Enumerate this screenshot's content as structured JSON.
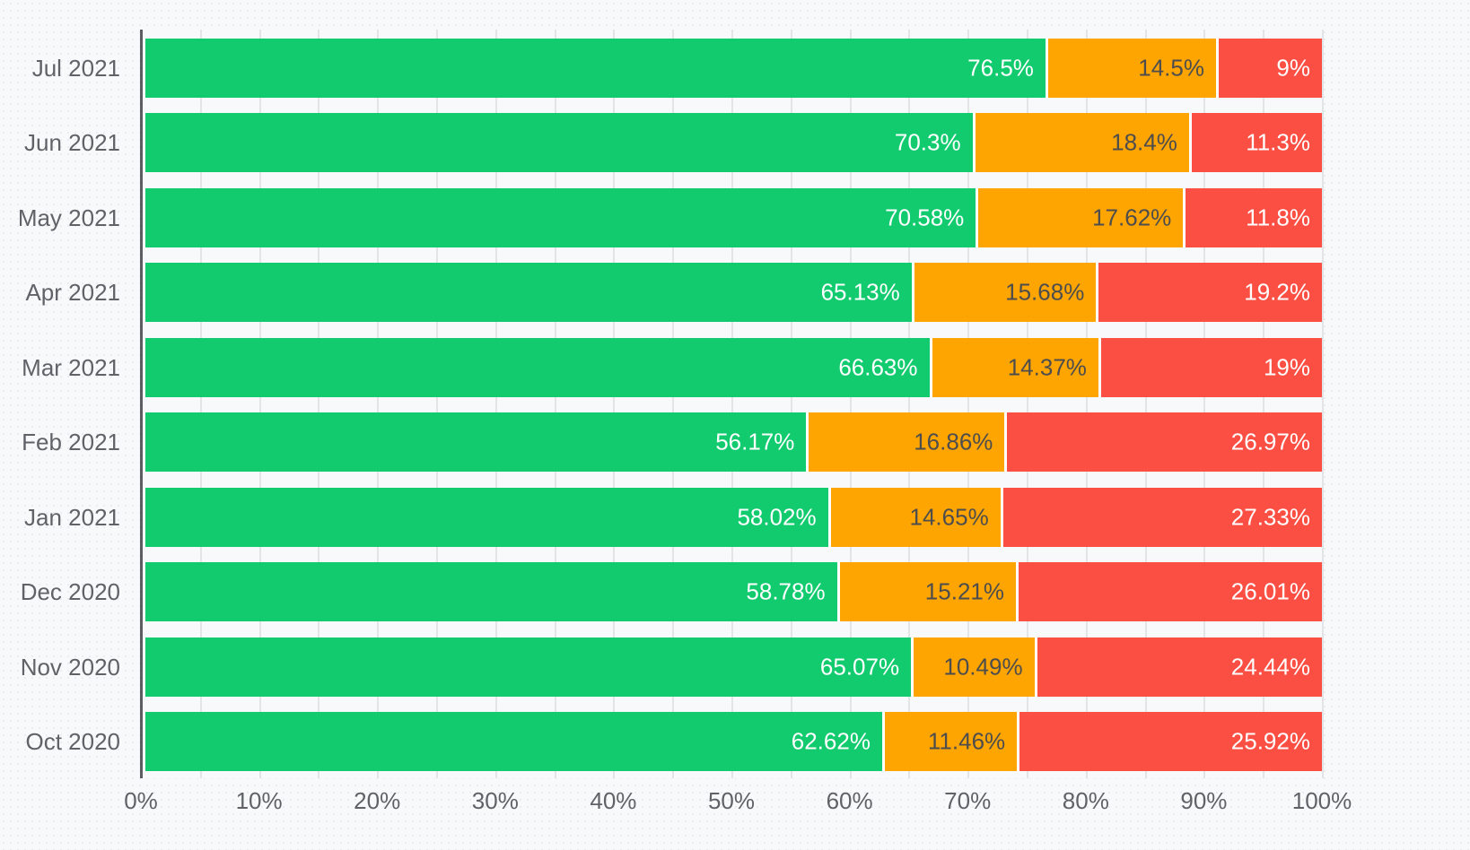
{
  "chart_data": {
    "type": "bar",
    "orientation": "horizontal",
    "stacked": true,
    "title": "",
    "xlabel": "",
    "ylabel": "",
    "xlim": [
      0,
      100
    ],
    "grid": {
      "vertical_lines": true,
      "minor_step_percent": 5,
      "major_step_percent": 10
    },
    "legend": "none",
    "categories": [
      "Jul 2021",
      "Jun 2021",
      "May 2021",
      "Apr 2021",
      "Mar 2021",
      "Feb 2021",
      "Jan 2021",
      "Dec 2020",
      "Nov 2020",
      "Oct 2020"
    ],
    "series": [
      {
        "name": "green",
        "color": "#12cb6e",
        "label_color": "#ffffff",
        "values": [
          76.5,
          70.3,
          70.58,
          65.13,
          66.63,
          56.17,
          58.02,
          58.78,
          65.07,
          62.62
        ]
      },
      {
        "name": "orange",
        "color": "#ffa502",
        "label_color": "#4d4d4d",
        "values": [
          14.5,
          18.4,
          17.62,
          15.68,
          14.37,
          16.86,
          14.65,
          15.21,
          10.49,
          11.46
        ]
      },
      {
        "name": "red",
        "color": "#fc4f44",
        "label_color": "#ffffff",
        "values": [
          9,
          11.3,
          11.8,
          19.2,
          19,
          26.97,
          27.33,
          26.01,
          24.44,
          25.92
        ]
      }
    ],
    "value_labels": [
      [
        "76.5%",
        "14.5%",
        "9%"
      ],
      [
        "70.3%",
        "18.4%",
        "11.3%"
      ],
      [
        "70.58%",
        "17.62%",
        "11.8%"
      ],
      [
        "65.13%",
        "15.68%",
        "19.2%"
      ],
      [
        "66.63%",
        "14.37%",
        "19%"
      ],
      [
        "56.17%",
        "16.86%",
        "26.97%"
      ],
      [
        "58.02%",
        "14.65%",
        "27.33%"
      ],
      [
        "58.78%",
        "15.21%",
        "26.01%"
      ],
      [
        "65.07%",
        "10.49%",
        "24.44%"
      ],
      [
        "62.62%",
        "11.46%",
        "25.92%"
      ]
    ],
    "x_ticks": [
      "0%",
      "10%",
      "20%",
      "30%",
      "40%",
      "50%",
      "60%",
      "70%",
      "80%",
      "90%",
      "100%"
    ]
  },
  "style": {
    "background": "#f8f9fa",
    "gridline_color": "#e3e4e5",
    "axis_line_color": "#5b5e61",
    "axis_label_color": "#5f6368",
    "segment_separator_color": "#ffffff"
  }
}
